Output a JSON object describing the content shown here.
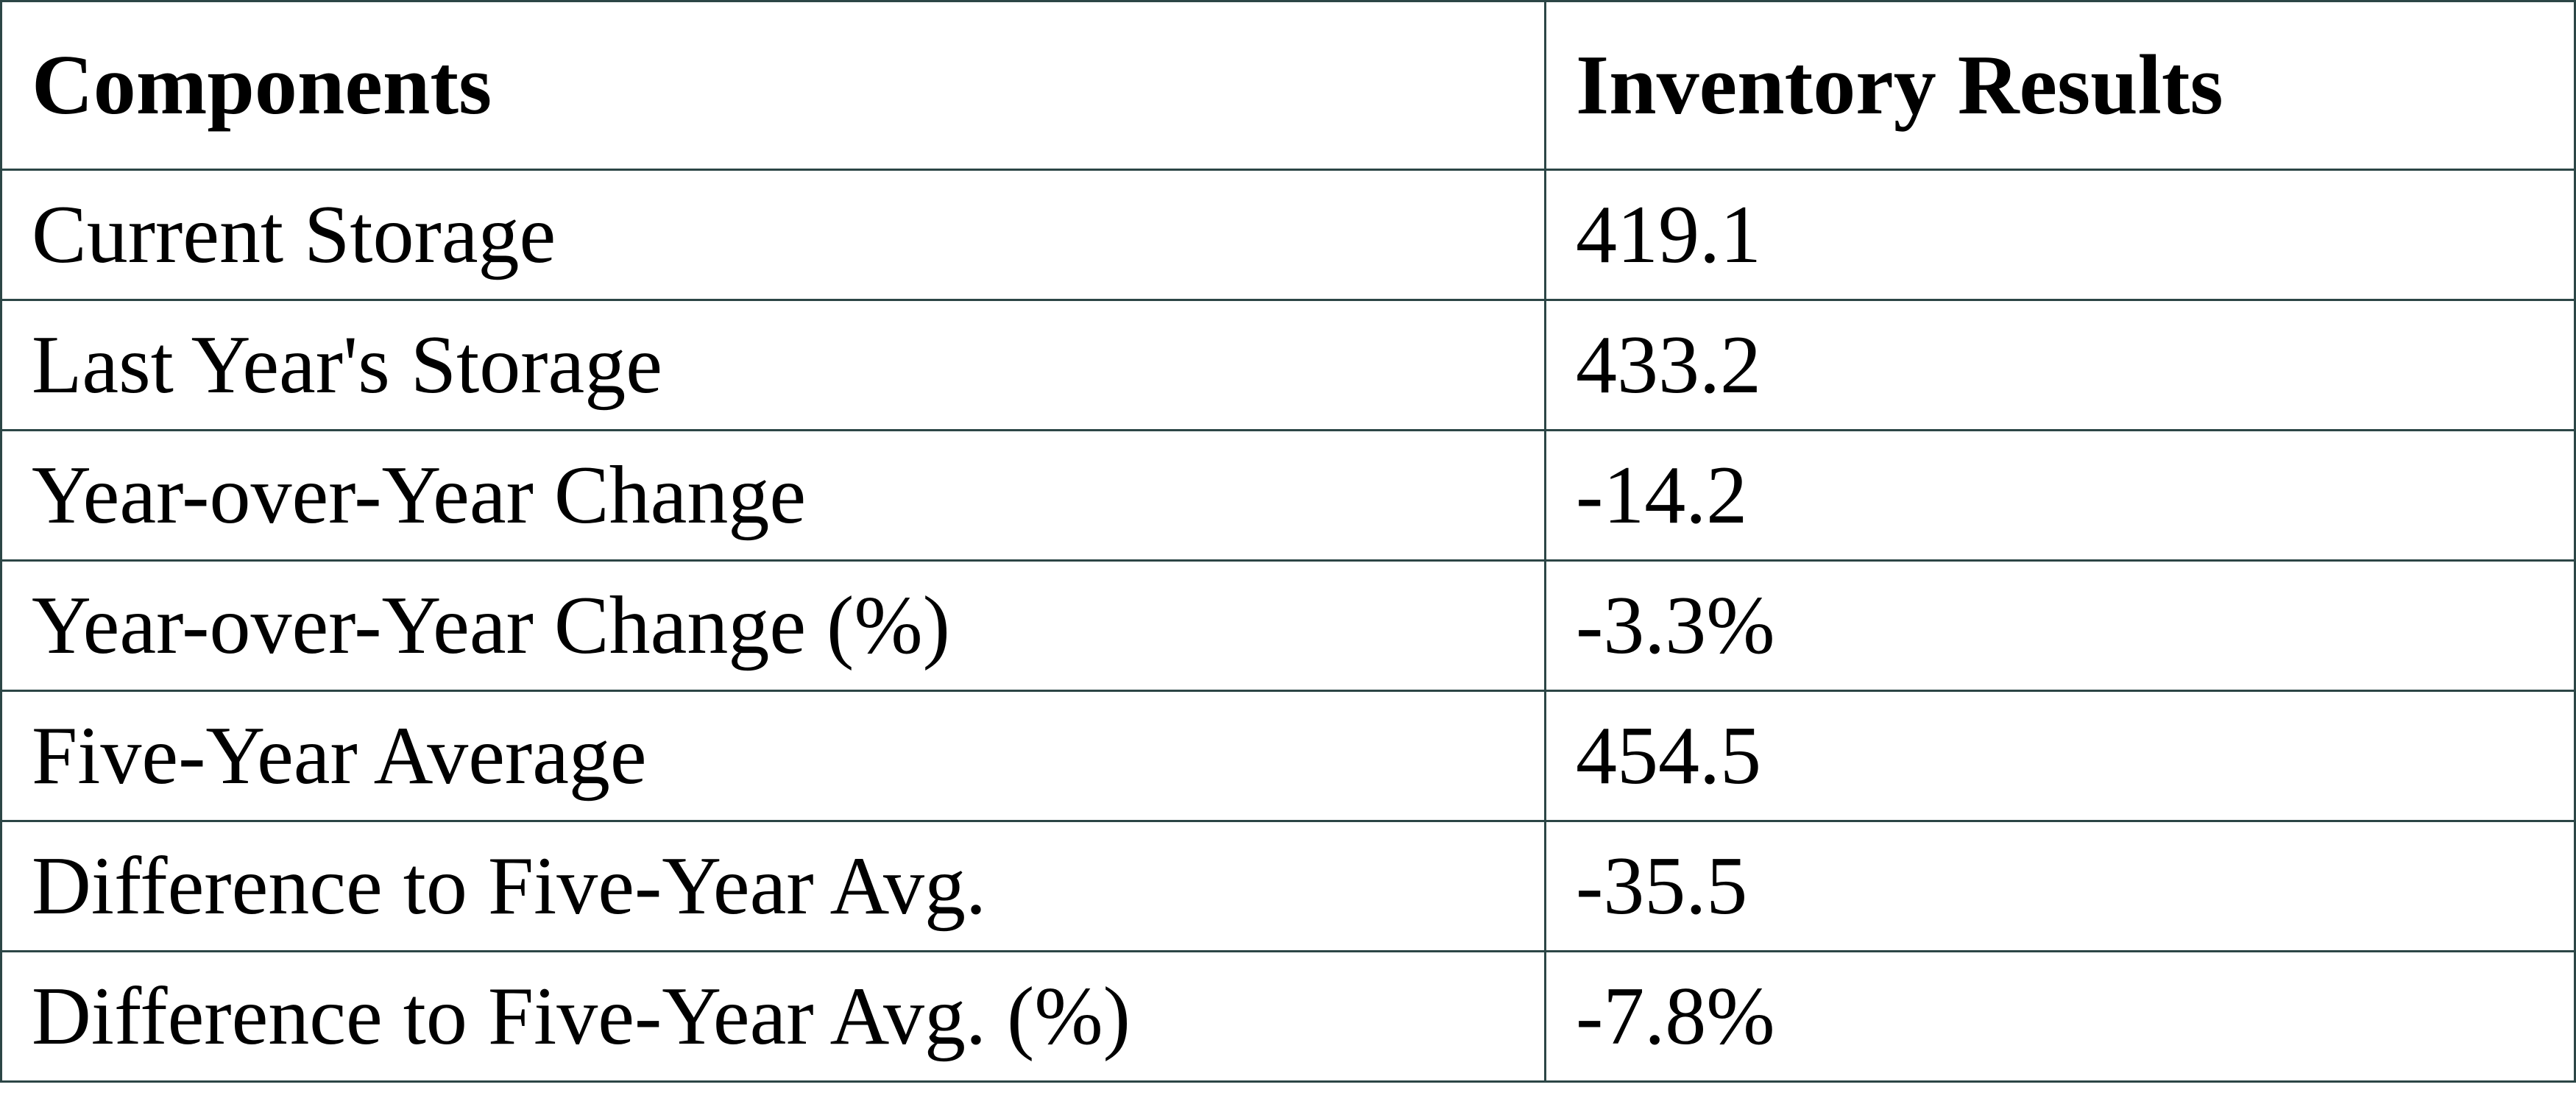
{
  "table": {
    "header": [
      "Components",
      "Inventory Results"
    ],
    "rows": [
      [
        "Current Storage",
        "419.1"
      ],
      [
        "Last Year's Storage",
        "433.2"
      ],
      [
        "Year-over-Year Change",
        "-14.2"
      ],
      [
        "Year-over-Year Change (%)",
        "-3.3%"
      ],
      [
        "Five-Year Average",
        "454.5"
      ],
      [
        "Difference to Five-Year Avg.",
        "-35.5"
      ],
      [
        "Difference to Five-Year Avg. (%)",
        "-7.8%"
      ]
    ]
  }
}
